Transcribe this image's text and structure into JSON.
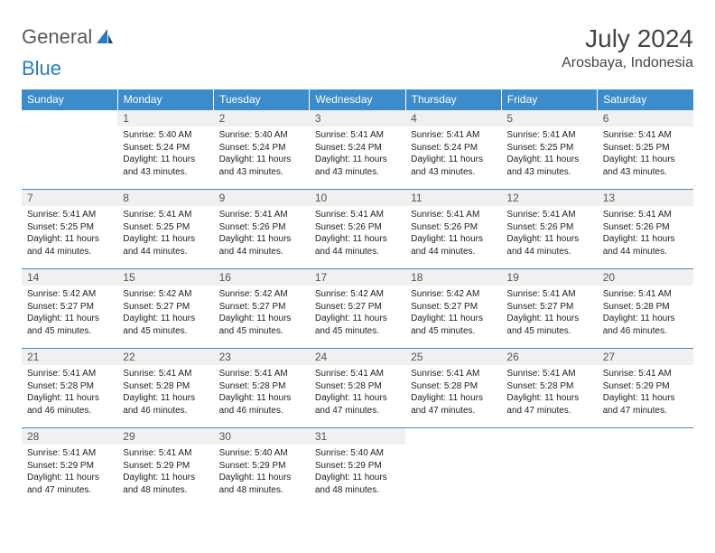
{
  "brand": {
    "part1": "General",
    "part2": "Blue"
  },
  "title": "July 2024",
  "location": "Arosbaya, Indonesia",
  "colors": {
    "header_bg": "#3c8ccc",
    "header_text": "#ffffff",
    "daynum_bg": "#eef0f1",
    "daynum_text": "#555555",
    "body_text": "#222222",
    "brand_gray": "#5a5a5a",
    "brand_blue": "#2a7cc2",
    "rule": "#3c8ccc"
  },
  "weekdays": [
    "Sunday",
    "Monday",
    "Tuesday",
    "Wednesday",
    "Thursday",
    "Friday",
    "Saturday"
  ],
  "weeks": [
    [
      {
        "n": "",
        "lines": []
      },
      {
        "n": "1",
        "lines": [
          "Sunrise: 5:40 AM",
          "Sunset: 5:24 PM",
          "Daylight: 11 hours and 43 minutes."
        ]
      },
      {
        "n": "2",
        "lines": [
          "Sunrise: 5:40 AM",
          "Sunset: 5:24 PM",
          "Daylight: 11 hours and 43 minutes."
        ]
      },
      {
        "n": "3",
        "lines": [
          "Sunrise: 5:41 AM",
          "Sunset: 5:24 PM",
          "Daylight: 11 hours and 43 minutes."
        ]
      },
      {
        "n": "4",
        "lines": [
          "Sunrise: 5:41 AM",
          "Sunset: 5:24 PM",
          "Daylight: 11 hours and 43 minutes."
        ]
      },
      {
        "n": "5",
        "lines": [
          "Sunrise: 5:41 AM",
          "Sunset: 5:25 PM",
          "Daylight: 11 hours and 43 minutes."
        ]
      },
      {
        "n": "6",
        "lines": [
          "Sunrise: 5:41 AM",
          "Sunset: 5:25 PM",
          "Daylight: 11 hours and 43 minutes."
        ]
      }
    ],
    [
      {
        "n": "7",
        "lines": [
          "Sunrise: 5:41 AM",
          "Sunset: 5:25 PM",
          "Daylight: 11 hours and 44 minutes."
        ]
      },
      {
        "n": "8",
        "lines": [
          "Sunrise: 5:41 AM",
          "Sunset: 5:25 PM",
          "Daylight: 11 hours and 44 minutes."
        ]
      },
      {
        "n": "9",
        "lines": [
          "Sunrise: 5:41 AM",
          "Sunset: 5:26 PM",
          "Daylight: 11 hours and 44 minutes."
        ]
      },
      {
        "n": "10",
        "lines": [
          "Sunrise: 5:41 AM",
          "Sunset: 5:26 PM",
          "Daylight: 11 hours and 44 minutes."
        ]
      },
      {
        "n": "11",
        "lines": [
          "Sunrise: 5:41 AM",
          "Sunset: 5:26 PM",
          "Daylight: 11 hours and 44 minutes."
        ]
      },
      {
        "n": "12",
        "lines": [
          "Sunrise: 5:41 AM",
          "Sunset: 5:26 PM",
          "Daylight: 11 hours and 44 minutes."
        ]
      },
      {
        "n": "13",
        "lines": [
          "Sunrise: 5:41 AM",
          "Sunset: 5:26 PM",
          "Daylight: 11 hours and 44 minutes."
        ]
      }
    ],
    [
      {
        "n": "14",
        "lines": [
          "Sunrise: 5:42 AM",
          "Sunset: 5:27 PM",
          "Daylight: 11 hours and 45 minutes."
        ]
      },
      {
        "n": "15",
        "lines": [
          "Sunrise: 5:42 AM",
          "Sunset: 5:27 PM",
          "Daylight: 11 hours and 45 minutes."
        ]
      },
      {
        "n": "16",
        "lines": [
          "Sunrise: 5:42 AM",
          "Sunset: 5:27 PM",
          "Daylight: 11 hours and 45 minutes."
        ]
      },
      {
        "n": "17",
        "lines": [
          "Sunrise: 5:42 AM",
          "Sunset: 5:27 PM",
          "Daylight: 11 hours and 45 minutes."
        ]
      },
      {
        "n": "18",
        "lines": [
          "Sunrise: 5:42 AM",
          "Sunset: 5:27 PM",
          "Daylight: 11 hours and 45 minutes."
        ]
      },
      {
        "n": "19",
        "lines": [
          "Sunrise: 5:41 AM",
          "Sunset: 5:27 PM",
          "Daylight: 11 hours and 45 minutes."
        ]
      },
      {
        "n": "20",
        "lines": [
          "Sunrise: 5:41 AM",
          "Sunset: 5:28 PM",
          "Daylight: 11 hours and 46 minutes."
        ]
      }
    ],
    [
      {
        "n": "21",
        "lines": [
          "Sunrise: 5:41 AM",
          "Sunset: 5:28 PM",
          "Daylight: 11 hours and 46 minutes."
        ]
      },
      {
        "n": "22",
        "lines": [
          "Sunrise: 5:41 AM",
          "Sunset: 5:28 PM",
          "Daylight: 11 hours and 46 minutes."
        ]
      },
      {
        "n": "23",
        "lines": [
          "Sunrise: 5:41 AM",
          "Sunset: 5:28 PM",
          "Daylight: 11 hours and 46 minutes."
        ]
      },
      {
        "n": "24",
        "lines": [
          "Sunrise: 5:41 AM",
          "Sunset: 5:28 PM",
          "Daylight: 11 hours and 47 minutes."
        ]
      },
      {
        "n": "25",
        "lines": [
          "Sunrise: 5:41 AM",
          "Sunset: 5:28 PM",
          "Daylight: 11 hours and 47 minutes."
        ]
      },
      {
        "n": "26",
        "lines": [
          "Sunrise: 5:41 AM",
          "Sunset: 5:28 PM",
          "Daylight: 11 hours and 47 minutes."
        ]
      },
      {
        "n": "27",
        "lines": [
          "Sunrise: 5:41 AM",
          "Sunset: 5:29 PM",
          "Daylight: 11 hours and 47 minutes."
        ]
      }
    ],
    [
      {
        "n": "28",
        "lines": [
          "Sunrise: 5:41 AM",
          "Sunset: 5:29 PM",
          "Daylight: 11 hours and 47 minutes."
        ]
      },
      {
        "n": "29",
        "lines": [
          "Sunrise: 5:41 AM",
          "Sunset: 5:29 PM",
          "Daylight: 11 hours and 48 minutes."
        ]
      },
      {
        "n": "30",
        "lines": [
          "Sunrise: 5:40 AM",
          "Sunset: 5:29 PM",
          "Daylight: 11 hours and 48 minutes."
        ]
      },
      {
        "n": "31",
        "lines": [
          "Sunrise: 5:40 AM",
          "Sunset: 5:29 PM",
          "Daylight: 11 hours and 48 minutes."
        ]
      },
      {
        "n": "",
        "lines": []
      },
      {
        "n": "",
        "lines": []
      },
      {
        "n": "",
        "lines": []
      }
    ]
  ]
}
